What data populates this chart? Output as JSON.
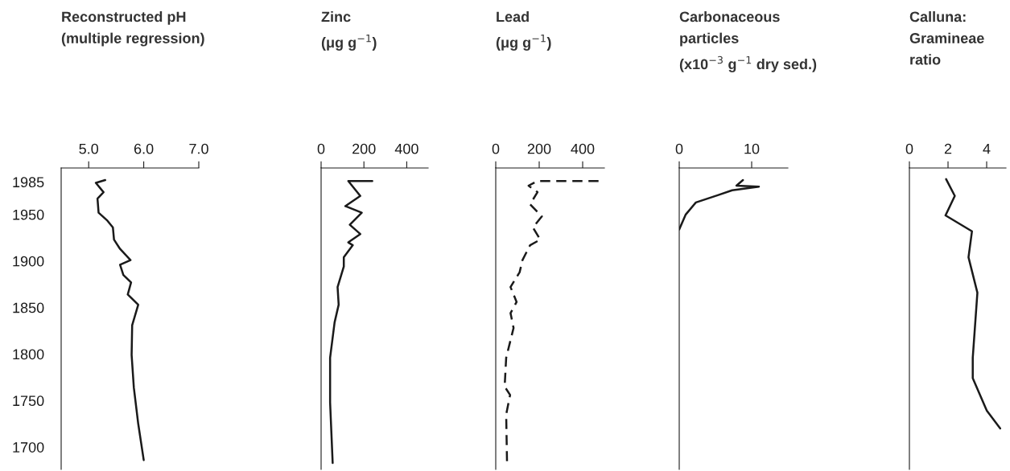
{
  "chart_data": [
    {
      "type": "line",
      "orientation": "horizontal",
      "title": "Reconstructed pH\n(multiple regression)",
      "xlim": [
        4.5,
        7.0
      ],
      "xticks": [
        {
          "value": 5.0,
          "label": "5.0"
        },
        {
          "value": 6.0,
          "label": "6.0"
        },
        {
          "value": 7.0,
          "label": "7.0"
        }
      ],
      "ylim": [
        1676,
        2000
      ],
      "yticks": [
        1700,
        1750,
        1800,
        1850,
        1900,
        1950,
        1985
      ],
      "series": [
        {
          "color": "#1a1a1a",
          "x": [
            1987,
            1984,
            1974,
            1967,
            1952,
            1944,
            1936,
            1923,
            1913,
            1901,
            1896,
            1885,
            1877,
            1864,
            1853,
            1831,
            1799,
            1764,
            1725,
            1686
          ],
          "values": [
            5.3,
            5.13,
            5.27,
            5.16,
            5.18,
            5.33,
            5.44,
            5.46,
            5.57,
            5.76,
            5.57,
            5.63,
            5.77,
            5.71,
            5.9,
            5.79,
            5.78,
            5.82,
            5.9,
            6.0
          ]
        }
      ]
    },
    {
      "type": "line",
      "orientation": "horizontal",
      "title": "Zinc\n(μg g$^{−1}$)",
      "xlim": [
        0,
        500
      ],
      "xticks": [
        0,
        200,
        400
      ],
      "ylim": [
        1676,
        2000
      ],
      "yticks": [
        1700,
        1750,
        1800,
        1850,
        1900,
        1950,
        1985
      ],
      "tick_labels": "x",
      "series": [
        {
          "color": "#1a1a1a",
          "x": [
            1986,
            1986,
            1970,
            1959,
            1952,
            1939,
            1929,
            1920,
            1917,
            1904,
            1894,
            1872,
            1853,
            1834,
            1796,
            1748,
            1683
          ],
          "values": [
            239,
            127,
            183,
            113,
            190,
            134,
            183,
            127,
            148,
            106,
            106,
            77,
            82,
            63,
            42,
            42,
            54
          ]
        }
      ]
    },
    {
      "type": "line",
      "orientation": "horizontal",
      "title": "Lead\n(μg g$^{−1}$)",
      "xlim": [
        0,
        500
      ],
      "xticks": [
        0,
        200,
        400
      ],
      "ylim": [
        1676,
        2000
      ],
      "yticks": [
        1700,
        1750,
        1800,
        1850,
        1900,
        1950,
        1985
      ],
      "tick_labels": "x",
      "line_style": "dashed",
      "series": [
        {
          "color": "#1a1a1a",
          "x": [
            1986,
            1986,
            1981,
            1974,
            1961,
            1948,
            1936,
            1923,
            1917,
            1901,
            1888,
            1872,
            1856,
            1844,
            1828,
            1796,
            1765,
            1756,
            1735,
            1683
          ],
          "values": [
            473,
            192,
            151,
            192,
            158,
            212,
            171,
            205,
            158,
            123,
            110,
            68,
            96,
            68,
            82,
            48,
            41,
            66,
            48,
            52
          ]
        }
      ]
    },
    {
      "type": "line",
      "orientation": "horizontal",
      "title": "Carbonaceous\nparticles\n(x10$^{−3}$ g$^{−1}$ dry sed.)",
      "xlim": [
        0,
        15
      ],
      "xticks": [
        0,
        10
      ],
      "ylim": [
        1676,
        2000
      ],
      "yticks": [
        1700,
        1750,
        1800,
        1850,
        1900,
        1950,
        1985
      ],
      "tick_labels": "x",
      "series": [
        {
          "color": "#1a1a1a",
          "x": [
            1987,
            1981,
            1980,
            1976,
            1971,
            1963,
            1950,
            1934
          ],
          "values": [
            8.8,
            7.9,
            11.0,
            7.3,
            5.4,
            2.3,
            0.9,
            0.0
          ]
        }
      ]
    },
    {
      "type": "line",
      "orientation": "horizontal",
      "title": "Calluna:\nGramineae\nratio",
      "xlim": [
        0,
        5
      ],
      "xticks": [
        0,
        2,
        4
      ],
      "ylim": [
        1676,
        2000
      ],
      "yticks": [
        1700,
        1750,
        1800,
        1850,
        1900,
        1950,
        1985
      ],
      "tick_labels": "x",
      "series": [
        {
          "color": "#1a1a1a",
          "x": [
            1988,
            1970,
            1949,
            1932,
            1904,
            1866,
            1796,
            1774,
            1739,
            1720
          ],
          "values": [
            1.9,
            2.35,
            1.87,
            3.24,
            3.06,
            3.52,
            3.28,
            3.28,
            4.01,
            4.7
          ]
        }
      ]
    }
  ]
}
